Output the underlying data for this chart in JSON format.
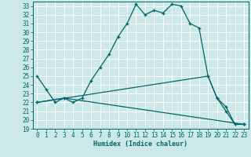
{
  "title": "",
  "xlabel": "Humidex (Indice chaleur)",
  "background_color": "#cce8e8",
  "grid_color": "#ffffff",
  "line_color": "#006666",
  "xlim": [
    -0.5,
    23.5
  ],
  "ylim": [
    19,
    33.5
  ],
  "yticks": [
    19,
    20,
    21,
    22,
    23,
    24,
    25,
    26,
    27,
    28,
    29,
    30,
    31,
    32,
    33
  ],
  "xticks": [
    0,
    1,
    2,
    3,
    4,
    5,
    6,
    7,
    8,
    9,
    10,
    11,
    12,
    13,
    14,
    15,
    16,
    17,
    18,
    19,
    20,
    21,
    22,
    23
  ],
  "line1_x": [
    0,
    1,
    2,
    3,
    4,
    5,
    6,
    7,
    8,
    9,
    10,
    11,
    12,
    13,
    14,
    15,
    16,
    17,
    18,
    19,
    20,
    21,
    22,
    23
  ],
  "line1_y": [
    25.0,
    23.5,
    22.0,
    22.5,
    22.0,
    22.5,
    24.5,
    26.0,
    27.5,
    29.5,
    31.0,
    33.2,
    32.0,
    32.5,
    32.2,
    33.2,
    33.0,
    31.0,
    30.5,
    25.0,
    22.5,
    21.0,
    19.5,
    19.5
  ],
  "line2_x": [
    0,
    3,
    23
  ],
  "line2_y": [
    22.0,
    22.5,
    19.5
  ],
  "line3_x": [
    0,
    19,
    20,
    21,
    22,
    23
  ],
  "line3_y": [
    22.0,
    25.0,
    22.5,
    21.5,
    19.5,
    19.5
  ]
}
